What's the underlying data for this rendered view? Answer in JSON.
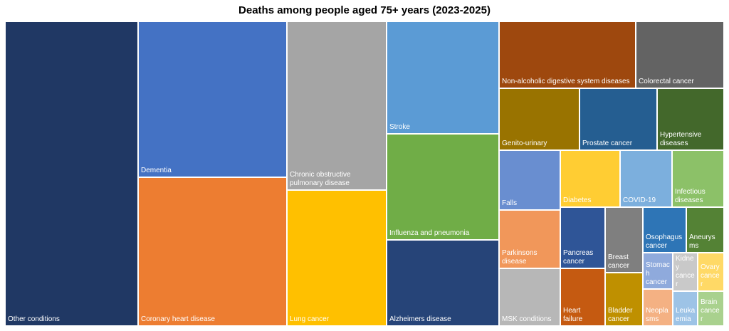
{
  "chart_data": {
    "type": "treemap",
    "title": "Deaths among people aged 75+ years (2023-2025)",
    "items": [
      {
        "label": "Other conditions",
        "color": "#203864"
      },
      {
        "label": "Dementia",
        "color": "#4472C4"
      },
      {
        "label": "Coronary heart disease",
        "color": "#ED7D31"
      },
      {
        "label": "Chronic obstructive pulmonary disease",
        "lines": [
          "Chronic obstructive",
          "pulmonary disease"
        ],
        "color": "#A5A5A5"
      },
      {
        "label": "Lung cancer",
        "color": "#FFC000"
      },
      {
        "label": "Stroke",
        "color": "#5B9BD5"
      },
      {
        "label": "Influenza and pneumonia",
        "color": "#70AD47"
      },
      {
        "label": "Alzheimers disease",
        "color": "#264478"
      },
      {
        "label": "Non-alcoholic digestive system diseases",
        "color": "#9E480E"
      },
      {
        "label": "Colorectal cancer",
        "color": "#636363"
      },
      {
        "label": "Genito-urinary",
        "color": "#997300"
      },
      {
        "label": "Prostate cancer",
        "color": "#255E91"
      },
      {
        "label": "Hypertensive diseases",
        "lines": [
          "Hypertensive",
          "diseases"
        ],
        "color": "#43682B"
      },
      {
        "label": "Falls",
        "color": "#698ED0"
      },
      {
        "label": "Diabetes",
        "color": "#FFCD33"
      },
      {
        "label": "COVID-19",
        "color": "#7CAFDD"
      },
      {
        "label": "Infectious diseases",
        "lines": [
          "Infectious",
          "diseases"
        ],
        "color": "#8CC168"
      },
      {
        "label": "Parkinsons disease",
        "lines": [
          "Parkinsons",
          "disease"
        ],
        "color": "#F1975A"
      },
      {
        "label": "MSK conditions",
        "color": "#B7B7B7"
      },
      {
        "label": "Pancreas cancer",
        "lines": [
          "Pancreas",
          "cancer"
        ],
        "color": "#2F5597"
      },
      {
        "label": "Heart failure",
        "lines": [
          "Heart",
          "failure"
        ],
        "color": "#C55A11"
      },
      {
        "label": "Breast cancer",
        "lines": [
          "Breast",
          "cancer"
        ],
        "color": "#7F7F7F"
      },
      {
        "label": "Bladder cancer",
        "lines": [
          "Bladder",
          "cancer"
        ],
        "color": "#BF9000"
      },
      {
        "label": "Osophagus cancer",
        "lines": [
          "Osophagus",
          "cancer"
        ],
        "color": "#2E75B6"
      },
      {
        "label": "Aneurysms",
        "lines": [
          "Aneurys",
          "ms"
        ],
        "color": "#548235"
      },
      {
        "label": "Stomach cancer",
        "lines": [
          "Stomac",
          "h",
          "cancer"
        ],
        "color": "#8FAADC"
      },
      {
        "label": "Kidney cancer",
        "lines": [
          "Kidne",
          "y",
          "cance",
          "r"
        ],
        "color": "#C9C9C9"
      },
      {
        "label": "Ovary cancer",
        "lines": [
          "Ovary",
          "cance",
          "r"
        ],
        "color": "#FFD966"
      },
      {
        "label": "Neoplasms",
        "lines": [
          "Neopla",
          "sms"
        ],
        "color": "#F4B183"
      },
      {
        "label": "Leukaemia",
        "lines": [
          "Leuka",
          "emia"
        ],
        "color": "#9DC3E6"
      },
      {
        "label": "Brain cancer",
        "lines": [
          "Brain",
          "cance",
          "r"
        ],
        "color": "#A9D18E"
      }
    ]
  }
}
